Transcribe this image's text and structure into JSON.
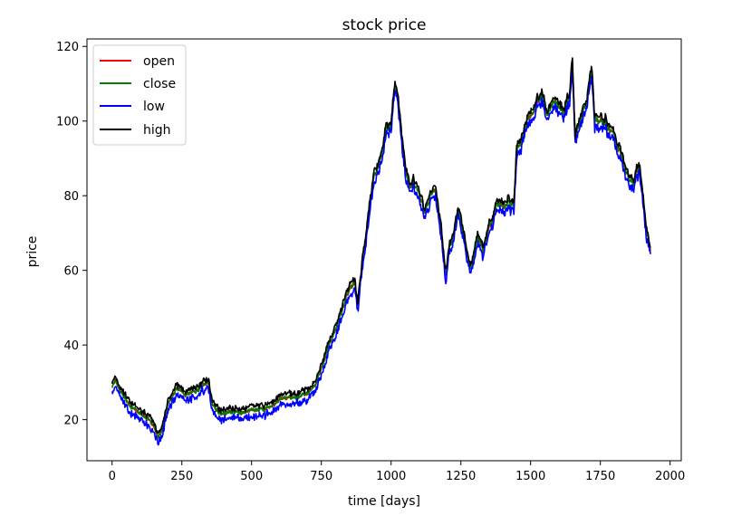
{
  "chart_data": {
    "type": "line",
    "title": "stock price",
    "xlabel": "time [days]",
    "ylabel": "price",
    "xlim": [
      -90,
      2040
    ],
    "ylim": [
      9,
      122
    ],
    "xticks": [
      0,
      250,
      500,
      750,
      1000,
      1250,
      1500,
      1750,
      2000
    ],
    "yticks": [
      20,
      40,
      60,
      80,
      100,
      120
    ],
    "grid": false,
    "legend_position": "top-left",
    "series": [
      {
        "name": "open",
        "color": "#ff0000"
      },
      {
        "name": "close",
        "color": "#008000"
      },
      {
        "name": "low",
        "color": "#0000ff"
      },
      {
        "name": "high",
        "color": "#000000"
      }
    ],
    "trend": {
      "x": [
        0,
        10,
        30,
        60,
        90,
        110,
        130,
        150,
        165,
        180,
        200,
        230,
        260,
        290,
        320,
        345,
        360,
        380,
        420,
        470,
        520,
        560,
        600,
        650,
        700,
        730,
        760,
        790,
        820,
        850,
        870,
        880,
        900,
        940,
        960,
        980,
        1000,
        1010,
        1020,
        1035,
        1050,
        1060,
        1070,
        1080,
        1100,
        1120,
        1140,
        1160,
        1180,
        1195,
        1205,
        1220,
        1240,
        1260,
        1275,
        1290,
        1310,
        1330,
        1360,
        1380,
        1400,
        1420,
        1440,
        1450,
        1470,
        1500,
        1520,
        1540,
        1560,
        1580,
        1600,
        1620,
        1640,
        1650,
        1660,
        1680,
        1700,
        1720,
        1730,
        1750,
        1770,
        1790,
        1810,
        1830,
        1850,
        1870,
        1890,
        1900,
        1915,
        1930
      ],
      "y": [
        29,
        30,
        27,
        24,
        22,
        21,
        20,
        18,
        15,
        17,
        24,
        28,
        27,
        27,
        29,
        30,
        24,
        22,
        22,
        22,
        23,
        23,
        25,
        26,
        27,
        30,
        36,
        42,
        48,
        55,
        56,
        50,
        64,
        86,
        90,
        97,
        99,
        108,
        110,
        98,
        88,
        84,
        82,
        84,
        80,
        76,
        82,
        80,
        70,
        58,
        64,
        68,
        76,
        70,
        64,
        62,
        68,
        64,
        73,
        78,
        76,
        80,
        78,
        92,
        96,
        101,
        104,
        108,
        101,
        104,
        104,
        103,
        106,
        114,
        96,
        100,
        104,
        112,
        98,
        100,
        100,
        96,
        94,
        90,
        86,
        84,
        88,
        82,
        70,
        65
      ]
    }
  }
}
